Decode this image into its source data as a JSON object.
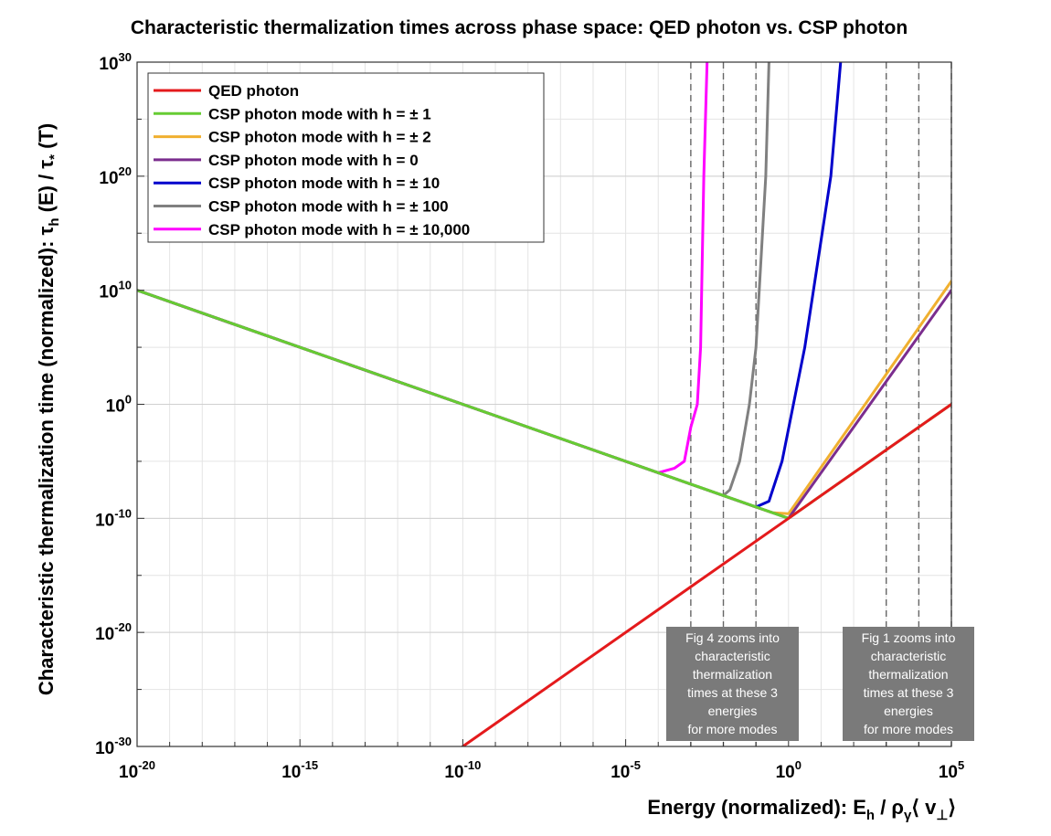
{
  "chart_data": {
    "type": "line",
    "title": "Characteristic thermalization times across phase space: QED photon vs. CSP photon",
    "xlabel": "Energy (normalized): E_h / ρ_γ⟨ v_⊥⟩",
    "ylabel": "Characteristic thermalization time (normalized): τ_h (E) / τ_* (T)",
    "xscale": "log",
    "yscale": "log",
    "xlim": [
      1e-20,
      100000.0
    ],
    "ylim": [
      1e-30,
      1e+30
    ],
    "grid": true,
    "legend_location": "top-left",
    "x_ticks": [
      {
        "base": "10",
        "exp": "-20"
      },
      {
        "base": "10",
        "exp": "-15"
      },
      {
        "base": "10",
        "exp": "-10"
      },
      {
        "base": "10",
        "exp": "-5"
      },
      {
        "base": "10",
        "exp": "0"
      },
      {
        "base": "10",
        "exp": "5"
      }
    ],
    "y_ticks": [
      {
        "base": "10",
        "exp": "-30"
      },
      {
        "base": "10",
        "exp": "-20"
      },
      {
        "base": "10",
        "exp": "-10"
      },
      {
        "base": "10",
        "exp": "0"
      },
      {
        "base": "10",
        "exp": "10"
      },
      {
        "base": "10",
        "exp": "20"
      },
      {
        "base": "10",
        "exp": "30"
      }
    ],
    "series": [
      {
        "name": "QED photon",
        "color": "#e41a1c",
        "x_log10": [
          -10,
          5
        ],
        "y_log10": [
          -30,
          0
        ]
      },
      {
        "name": "CSP photon mode with h = ± 1",
        "color": "#66cc33",
        "x_log10": [
          -20,
          0,
          5
        ],
        "y_log10": [
          10,
          -10,
          0
        ]
      },
      {
        "name": "CSP photon mode with h = ± 2",
        "color": "#f0b030",
        "x_log10": [
          -20,
          -1,
          -0.5,
          0,
          5
        ],
        "y_log10": [
          10,
          -9,
          -9.5,
          -9.6,
          10.8
        ]
      },
      {
        "name": "CSP photon mode with h = 0",
        "color": "#7b2d8e",
        "x_log10": [
          -20,
          -1,
          -0.5,
          0,
          5
        ],
        "y_log10": [
          10,
          -9,
          -9.5,
          -10,
          10
        ]
      },
      {
        "name": "CSP photon mode with h = ± 10",
        "color": "#0000cc",
        "x_log10": [
          -20,
          -1,
          -0.6,
          -0.2,
          0.5,
          1.3,
          1.6
        ],
        "y_log10": [
          10,
          -9,
          -8.5,
          -5,
          5,
          20,
          30
        ]
      },
      {
        "name": "CSP photon mode with h = ± 100",
        "color": "#808080",
        "x_log10": [
          -20,
          -2,
          -1.8,
          -1.5,
          -1.2,
          -1.0,
          -0.7,
          -0.6
        ],
        "y_log10": [
          10,
          -8,
          -7.5,
          -5,
          0,
          5,
          20,
          30
        ]
      },
      {
        "name": "CSP photon mode with h = ± 10,000",
        "color": "#ff00ff",
        "x_log10": [
          -20,
          -4,
          -3.5,
          -3.2,
          -3.0,
          -2.8,
          -2.7,
          -2.6,
          -2.5
        ],
        "y_log10": [
          10,
          -6,
          -5.6,
          -5,
          -2,
          0,
          5,
          20,
          30
        ]
      }
    ],
    "reference_lines_x_log10": [
      -3,
      -2,
      -1,
      3,
      4,
      5
    ],
    "annotations": [
      {
        "id": "fig4",
        "lines": [
          "Fig 4 zooms into",
          "characteristic",
          "thermalization",
          "times at these 3",
          "energies",
          "for more modes"
        ]
      },
      {
        "id": "fig1",
        "lines": [
          "Fig 1 zooms into",
          "characteristic",
          "thermalization",
          "times at these 3",
          "energies",
          "for more modes"
        ]
      }
    ]
  }
}
